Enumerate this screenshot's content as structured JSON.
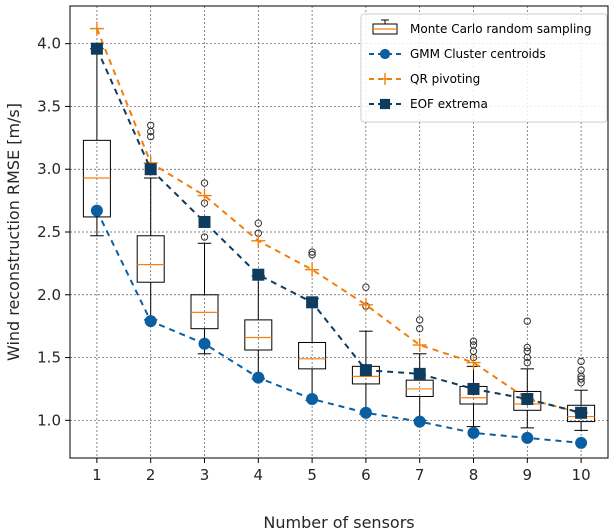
{
  "chart_data": {
    "type": "line",
    "xlabel": "Number of sensors",
    "ylabel": "Wind reconstruction RMSE [m/s]",
    "x": [
      1,
      2,
      3,
      4,
      5,
      6,
      7,
      8,
      9,
      10
    ],
    "xlim": [
      0.5,
      10.5
    ],
    "ylim": [
      0.7,
      4.3
    ],
    "y_ticks": [
      "1.0",
      "1.5",
      "2.0",
      "2.5",
      "3.0",
      "3.5",
      "4.0"
    ],
    "x_ticks": [
      "1",
      "2",
      "3",
      "4",
      "5",
      "6",
      "7",
      "8",
      "9",
      "10"
    ],
    "grid": true,
    "legend_position": "top-right",
    "series": [
      {
        "name": "Monte Carlo random sampling",
        "kind": "boxplot",
        "color": "#000000",
        "median_color": "#ff7f0e",
        "boxes": [
          {
            "whisker_low": 2.47,
            "q1": 2.62,
            "median": 2.93,
            "q3": 3.23,
            "whisker_high": 3.96,
            "outliers": []
          },
          {
            "whisker_low": 1.8,
            "q1": 2.1,
            "median": 2.24,
            "q3": 2.47,
            "whisker_high": 2.93,
            "outliers": [
              3.26,
              3.3,
              3.35
            ]
          },
          {
            "whisker_low": 1.53,
            "q1": 1.73,
            "median": 1.86,
            "q3": 2.0,
            "whisker_high": 2.41,
            "outliers": [
              2.46,
              2.73,
              2.89
            ]
          },
          {
            "whisker_low": 1.33,
            "q1": 1.56,
            "median": 1.66,
            "q3": 1.8,
            "whisker_high": 2.15,
            "outliers": [
              2.49,
              2.57
            ]
          },
          {
            "whisker_low": 1.16,
            "q1": 1.41,
            "median": 1.49,
            "q3": 1.62,
            "whisker_high": 1.97,
            "outliers": [
              2.32,
              2.34
            ]
          },
          {
            "whisker_low": 1.05,
            "q1": 1.29,
            "median": 1.35,
            "q3": 1.43,
            "whisker_high": 1.71,
            "outliers": [
              1.91,
              2.06
            ]
          },
          {
            "whisker_low": 1.0,
            "q1": 1.19,
            "median": 1.25,
            "q3": 1.32,
            "whisker_high": 1.53,
            "outliers": [
              1.73,
              1.8
            ]
          },
          {
            "whisker_low": 0.95,
            "q1": 1.13,
            "median": 1.18,
            "q3": 1.27,
            "whisker_high": 1.43,
            "outliers": [
              1.5,
              1.55,
              1.6,
              1.63
            ]
          },
          {
            "whisker_low": 0.94,
            "q1": 1.08,
            "median": 1.13,
            "q3": 1.23,
            "whisker_high": 1.41,
            "outliers": [
              1.46,
              1.5,
              1.55,
              1.58,
              1.79
            ]
          },
          {
            "whisker_low": 0.92,
            "q1": 0.99,
            "median": 1.03,
            "q3": 1.12,
            "whisker_high": 1.24,
            "outliers": [
              1.3,
              1.33,
              1.35,
              1.4,
              1.47
            ]
          }
        ]
      },
      {
        "name": "GMM Cluster centroids",
        "kind": "line",
        "color": "#0a5fa3",
        "marker": "circle",
        "dash": "6,5",
        "values": [
          2.67,
          1.79,
          1.61,
          1.34,
          1.17,
          1.06,
          0.99,
          0.9,
          0.86,
          0.82
        ]
      },
      {
        "name": "QR pivoting",
        "kind": "line",
        "color": "#f07f0c",
        "marker": "plus",
        "dash": "6,5",
        "values": [
          4.12,
          3.05,
          2.79,
          2.43,
          2.2,
          1.92,
          1.6,
          1.46,
          1.17,
          1.06
        ]
      },
      {
        "name": "EOF extrema",
        "kind": "line",
        "color": "#0d3c5e",
        "marker": "square",
        "dash": "6,5",
        "values": [
          3.96,
          3.0,
          2.58,
          2.16,
          1.94,
          1.4,
          1.37,
          1.25,
          1.17,
          1.06
        ]
      }
    ]
  }
}
